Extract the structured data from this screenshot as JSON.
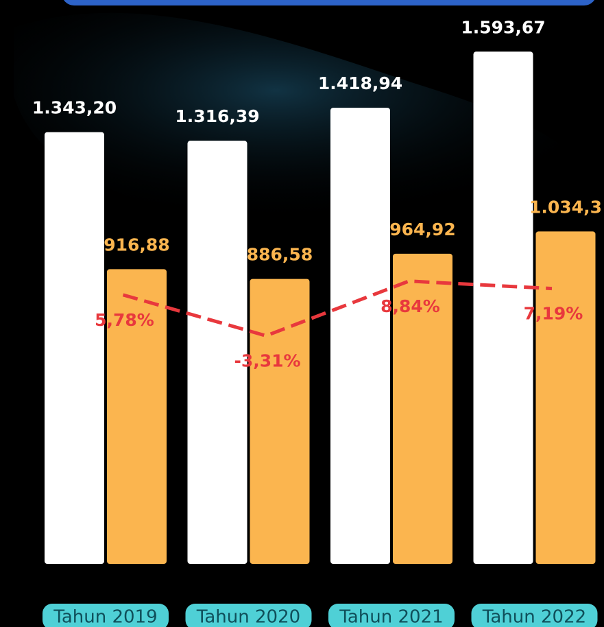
{
  "chart_data": {
    "type": "bar",
    "categories": [
      "Tahun 2019",
      "Tahun 2020",
      "Tahun 2021",
      "Tahun 2022"
    ],
    "series": [
      {
        "color": "#ffffff",
        "values": [
          1343.2,
          1316.39,
          1418.94,
          1593.67
        ],
        "value_labels": [
          "1.343,20",
          "1.316,39",
          "1.418,94",
          "1.593,67"
        ]
      },
      {
        "color": "#fbb54f",
        "values": [
          916.88,
          886.58,
          964.92,
          1034.3
        ],
        "value_labels": [
          "916,88",
          "886,58",
          "964,92",
          "1.034,3"
        ]
      },
      {
        "type": "line",
        "axis": "y2",
        "color": "#e8383d",
        "values": [
          5.78,
          -3.31,
          8.84,
          7.19
        ],
        "value_labels": [
          "5,78%",
          "-3,31%",
          "8,84%",
          "7,19%"
        ]
      }
    ],
    "ylim": [
      0,
      1750
    ],
    "y2lim": [
      -54,
      71
    ]
  }
}
